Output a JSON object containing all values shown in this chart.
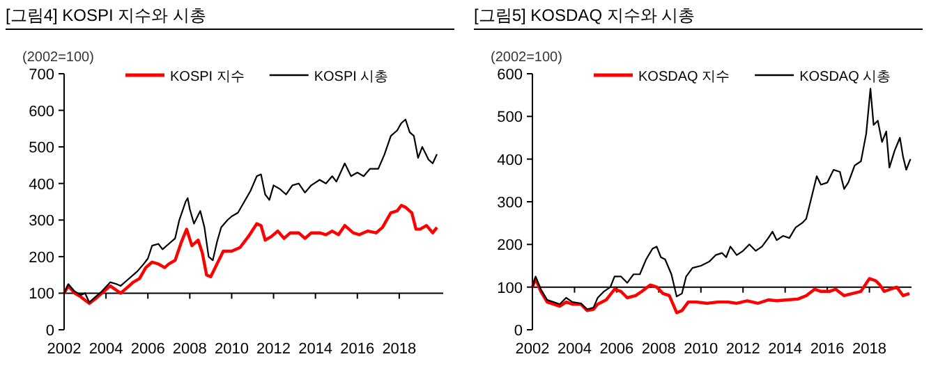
{
  "chart_data": [
    {
      "type": "line",
      "title": "[그림4]   KOSPI 지수와 시총",
      "ylabel": "(2002=100)",
      "xlim": [
        2002,
        2020.1
      ],
      "xticks": [
        2002,
        2004,
        2006,
        2008,
        2010,
        2012,
        2014,
        2016,
        2018
      ],
      "ylim": [
        0,
        700
      ],
      "yticks": [
        0,
        100,
        200,
        300,
        400,
        500,
        600,
        700
      ],
      "grid": false,
      "legend": "top",
      "line_style": "solid",
      "marker": "none",
      "ref_lines": [
        {
          "axis": "y",
          "value": 100,
          "color": "#000000"
        }
      ],
      "series": [
        {
          "name": "KOSPI 지수",
          "color": "#ff0000",
          "x": [
            2002,
            2002.2,
            2002.5,
            2002.8,
            2003.2,
            2003.5,
            2003.8,
            2004.2,
            2004.5,
            2004.7,
            2005.0,
            2005.3,
            2005.6,
            2005.9,
            2006.2,
            2006.5,
            2006.8,
            2007.0,
            2007.3,
            2007.6,
            2007.85,
            2008.1,
            2008.4,
            2008.6,
            2008.8,
            2009.0,
            2009.3,
            2009.6,
            2010.0,
            2010.4,
            2010.8,
            2011.2,
            2011.4,
            2011.6,
            2011.9,
            2012.2,
            2012.5,
            2012.8,
            2013.2,
            2013.5,
            2013.8,
            2014.2,
            2014.5,
            2014.8,
            2015.1,
            2015.4,
            2015.8,
            2016.1,
            2016.5,
            2016.9,
            2017.2,
            2017.6,
            2017.9,
            2018.1,
            2018.3,
            2018.6,
            2018.8,
            2019.0,
            2019.3,
            2019.6,
            2019.8
          ],
          "values": [
            100,
            120,
            100,
            90,
            72,
            85,
            100,
            120,
            108,
            100,
            115,
            130,
            140,
            170,
            185,
            180,
            170,
            180,
            190,
            240,
            275,
            230,
            245,
            210,
            150,
            145,
            180,
            215,
            215,
            225,
            255,
            290,
            285,
            245,
            255,
            270,
            250,
            265,
            265,
            250,
            265,
            265,
            260,
            270,
            260,
            285,
            265,
            260,
            270,
            265,
            280,
            320,
            325,
            340,
            335,
            320,
            275,
            275,
            285,
            265,
            280
          ]
        },
        {
          "name": "KOSPI 시총",
          "color": "#000000",
          "x": [
            2002.0,
            2002.2,
            2002.5,
            2002.8,
            2003.0,
            2003.2,
            2003.5,
            2003.8,
            2004.2,
            2004.5,
            2004.7,
            2005.0,
            2005.3,
            2005.5,
            2005.8,
            2006.0,
            2006.2,
            2006.5,
            2006.7,
            2007.0,
            2007.3,
            2007.5,
            2007.8,
            2007.9,
            2008.0,
            2008.2,
            2008.5,
            2008.7,
            2008.9,
            2009.1,
            2009.3,
            2009.5,
            2009.8,
            2010.0,
            2010.3,
            2010.6,
            2010.9,
            2011.2,
            2011.4,
            2011.6,
            2011.8,
            2012.0,
            2012.3,
            2012.6,
            2012.9,
            2013.2,
            2013.5,
            2013.8,
            2014.2,
            2014.5,
            2014.8,
            2015.0,
            2015.4,
            2015.7,
            2016.0,
            2016.3,
            2016.6,
            2017.0,
            2017.3,
            2017.6,
            2017.9,
            2018.1,
            2018.3,
            2018.5,
            2018.7,
            2018.9,
            2019.1,
            2019.4,
            2019.6,
            2019.8
          ],
          "values": [
            100,
            125,
            105,
            95,
            100,
            75,
            90,
            105,
            130,
            125,
            120,
            135,
            150,
            160,
            180,
            195,
            230,
            235,
            220,
            235,
            250,
            300,
            350,
            360,
            330,
            290,
            325,
            280,
            200,
            190,
            240,
            280,
            300,
            310,
            320,
            350,
            380,
            420,
            425,
            370,
            355,
            395,
            385,
            370,
            395,
            400,
            375,
            395,
            410,
            400,
            420,
            405,
            455,
            420,
            430,
            420,
            440,
            440,
            480,
            530,
            545,
            565,
            575,
            540,
            530,
            470,
            500,
            465,
            455,
            480
          ]
        }
      ]
    },
    {
      "type": "line",
      "title": "[그림5]   KOSDAQ 지수와 시총",
      "ylabel": "(2002=100)",
      "xlim": [
        2002,
        2020.0
      ],
      "xticks": [
        2002,
        2004,
        2006,
        2008,
        2010,
        2012,
        2014,
        2016,
        2018
      ],
      "ylim": [
        0,
        600
      ],
      "yticks": [
        0,
        100,
        200,
        300,
        400,
        500,
        600
      ],
      "grid": false,
      "legend": "top",
      "line_style": "solid",
      "marker": "none",
      "ref_lines": [
        {
          "axis": "y",
          "value": 100,
          "color": "#000000"
        }
      ],
      "series": [
        {
          "name": "KOSDAQ 지수",
          "color": "#ff0000",
          "x": [
            2002,
            2002.15,
            2002.4,
            2002.7,
            2003.0,
            2003.3,
            2003.6,
            2003.9,
            2004.3,
            2004.6,
            2004.9,
            2005.1,
            2005.5,
            2005.9,
            2006.2,
            2006.5,
            2006.9,
            2007.2,
            2007.6,
            2007.9,
            2008.2,
            2008.5,
            2008.85,
            2009.1,
            2009.4,
            2009.8,
            2010.3,
            2010.8,
            2011.3,
            2011.7,
            2012.2,
            2012.7,
            2013.2,
            2013.6,
            2014.1,
            2014.6,
            2015.0,
            2015.4,
            2015.7,
            2016.1,
            2016.4,
            2016.8,
            2017.2,
            2017.6,
            2018.0,
            2018.3,
            2018.5,
            2018.7,
            2019.0,
            2019.3,
            2019.6,
            2019.9
          ],
          "values": [
            100,
            120,
            90,
            65,
            60,
            55,
            65,
            60,
            60,
            45,
            48,
            60,
            70,
            95,
            90,
            75,
            80,
            90,
            105,
            100,
            85,
            80,
            40,
            45,
            65,
            65,
            62,
            65,
            65,
            62,
            68,
            62,
            70,
            68,
            70,
            72,
            80,
            95,
            90,
            90,
            95,
            80,
            85,
            90,
            120,
            115,
            105,
            90,
            95,
            100,
            80,
            85
          ]
        },
        {
          "name": "KOSDAQ 시총",
          "color": "#000000",
          "x": [
            2002,
            2002.15,
            2002.4,
            2002.7,
            2003.0,
            2003.3,
            2003.6,
            2003.9,
            2004.3,
            2004.6,
            2004.9,
            2005.1,
            2005.4,
            2005.7,
            2005.9,
            2006.2,
            2006.5,
            2006.8,
            2007.1,
            2007.4,
            2007.7,
            2007.9,
            2008.1,
            2008.3,
            2008.6,
            2008.85,
            2009.1,
            2009.3,
            2009.6,
            2010.0,
            2010.4,
            2010.7,
            2011.0,
            2011.2,
            2011.4,
            2011.7,
            2012.0,
            2012.3,
            2012.6,
            2012.9,
            2013.2,
            2013.4,
            2013.6,
            2013.9,
            2014.2,
            2014.5,
            2014.8,
            2015.0,
            2015.3,
            2015.5,
            2015.7,
            2016.0,
            2016.3,
            2016.6,
            2016.8,
            2017.0,
            2017.3,
            2017.6,
            2017.85,
            2018.05,
            2018.2,
            2018.4,
            2018.6,
            2018.8,
            2018.95,
            2019.2,
            2019.45,
            2019.6,
            2019.75,
            2019.95
          ],
          "values": [
            100,
            125,
            95,
            70,
            65,
            60,
            75,
            65,
            62,
            48,
            52,
            75,
            90,
            100,
            125,
            125,
            110,
            130,
            130,
            165,
            190,
            195,
            170,
            165,
            130,
            78,
            85,
            125,
            145,
            150,
            160,
            175,
            180,
            170,
            195,
            175,
            185,
            200,
            185,
            195,
            215,
            230,
            210,
            220,
            215,
            240,
            250,
            260,
            320,
            360,
            340,
            345,
            375,
            370,
            330,
            345,
            385,
            395,
            460,
            565,
            480,
            490,
            440,
            465,
            380,
            420,
            450,
            405,
            375,
            400
          ]
        }
      ]
    }
  ]
}
